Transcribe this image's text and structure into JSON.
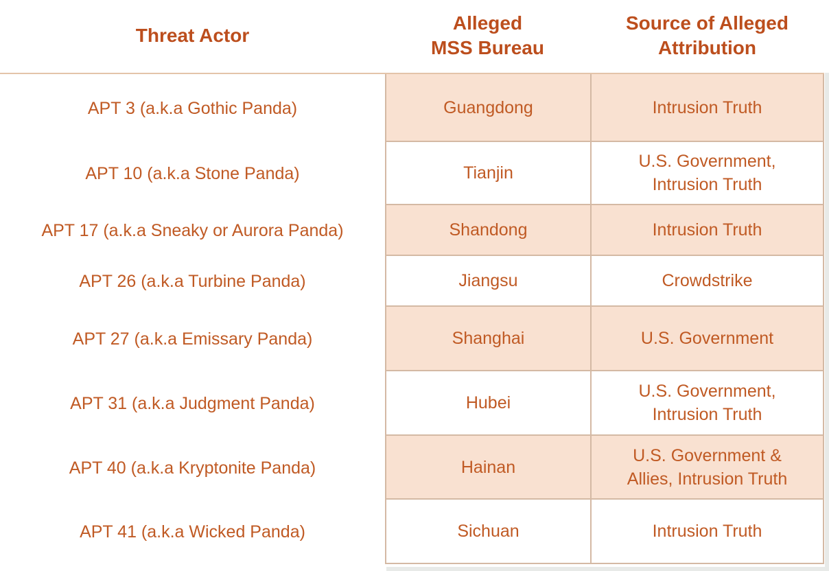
{
  "colors": {
    "header_text": "#bc4e1d",
    "body_text": "#c05a24",
    "shaded_cell_bg": "#f9e1d1",
    "cell_border": "#d4b9a4",
    "workspace_gray": "#e8eae8",
    "page_bg": "#ffffff"
  },
  "table": {
    "headers": [
      {
        "label": "Threat Actor"
      },
      {
        "label": "Alleged\nMSS Bureau"
      },
      {
        "label": "Source of Alleged\nAttribution"
      }
    ],
    "rows": [
      {
        "threat_actor": "APT 3 (a.k.a Gothic Panda)",
        "mss_bureau": "Guangdong",
        "source": "Intrusion Truth",
        "shaded": true
      },
      {
        "threat_actor": "APT 10 (a.k.a Stone Panda)",
        "mss_bureau": "Tianjin",
        "source": "U.S. Government,\nIntrusion Truth",
        "shaded": false
      },
      {
        "threat_actor": "APT 17 (a.k.a Sneaky or Aurora Panda)",
        "mss_bureau": "Shandong",
        "source": "Intrusion Truth",
        "shaded": true
      },
      {
        "threat_actor": "APT 26 (a.k.a Turbine Panda)",
        "mss_bureau": "Jiangsu",
        "source": "Crowdstrike",
        "shaded": false
      },
      {
        "threat_actor": "APT 27 (a.k.a Emissary Panda)",
        "mss_bureau": "Shanghai",
        "source": "U.S. Government",
        "shaded": true
      },
      {
        "threat_actor": "APT 31 (a.k.a Judgment Panda)",
        "mss_bureau": "Hubei",
        "source": "U.S. Government,\nIntrusion Truth",
        "shaded": false
      },
      {
        "threat_actor": "APT 40 (a.k.a Kryptonite Panda)",
        "mss_bureau": "Hainan",
        "source": "U.S. Government &\nAllies, Intrusion Truth",
        "shaded": true
      },
      {
        "threat_actor": "APT 41 (a.k.a Wicked Panda)",
        "mss_bureau": "Sichuan",
        "source": "Intrusion Truth",
        "shaded": false
      }
    ]
  }
}
